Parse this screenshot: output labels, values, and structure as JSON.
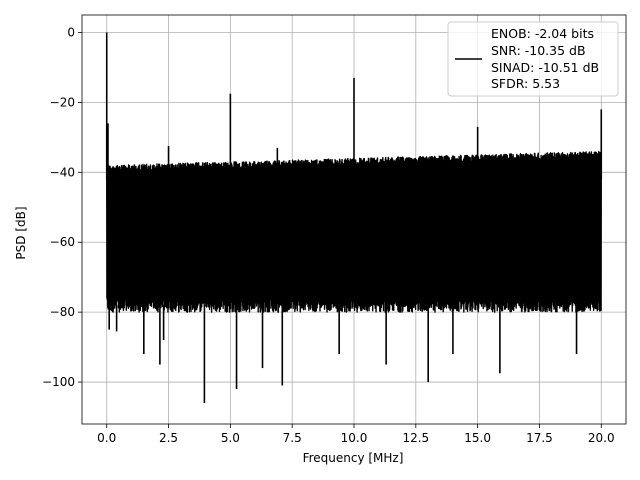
{
  "chart_data": {
    "type": "line",
    "title": "",
    "xlabel": "Frequency [MHz]",
    "ylabel": "PSD [dB]",
    "xlim": [
      -1.0,
      21.0
    ],
    "ylim": [
      -112,
      5
    ],
    "xticks": [
      0.0,
      2.5,
      5.0,
      7.5,
      10.0,
      12.5,
      15.0,
      17.5,
      20.0
    ],
    "xtick_labels": [
      "0.0",
      "2.5",
      "5.0",
      "7.5",
      "10.0",
      "12.5",
      "15.0",
      "17.5",
      "20.0"
    ],
    "yticks": [
      0,
      -20,
      -40,
      -60,
      -80,
      -100
    ],
    "ytick_labels": [
      "0",
      "−20",
      "−40",
      "−60",
      "−80",
      "−100"
    ],
    "grid": true,
    "legend_position": "top-right",
    "series": [
      {
        "color": "#000000",
        "noise_floor_band_db": [
          -80,
          -38
        ],
        "spurs": [
          {
            "x": 0.0,
            "y": 0.0
          },
          {
            "x": 0.05,
            "y": -26
          },
          {
            "x": 2.5,
            "y": -32.5
          },
          {
            "x": 5.0,
            "y": -17.5
          },
          {
            "x": 6.9,
            "y": -33
          },
          {
            "x": 10.0,
            "y": -13
          },
          {
            "x": 15.0,
            "y": -27
          },
          {
            "x": 20.0,
            "y": -22
          }
        ],
        "dips": [
          {
            "x": 0.1,
            "y": -85
          },
          {
            "x": 0.4,
            "y": -85.5
          },
          {
            "x": 1.5,
            "y": -92
          },
          {
            "x": 2.15,
            "y": -95
          },
          {
            "x": 2.3,
            "y": -88
          },
          {
            "x": 3.95,
            "y": -106
          },
          {
            "x": 5.25,
            "y": -102
          },
          {
            "x": 6.3,
            "y": -96
          },
          {
            "x": 7.1,
            "y": -101
          },
          {
            "x": 9.4,
            "y": -92
          },
          {
            "x": 11.3,
            "y": -95
          },
          {
            "x": 13.0,
            "y": -100
          },
          {
            "x": 14.0,
            "y": -92
          },
          {
            "x": 15.9,
            "y": -97.5
          },
          {
            "x": 19.0,
            "y": -92
          }
        ]
      }
    ],
    "legend": {
      "lines": [
        "ENOB: -2.04 bits",
        "SNR: -10.35 dB",
        "SINAD: -10.51 dB",
        "SFDR: 5.53"
      ]
    }
  }
}
